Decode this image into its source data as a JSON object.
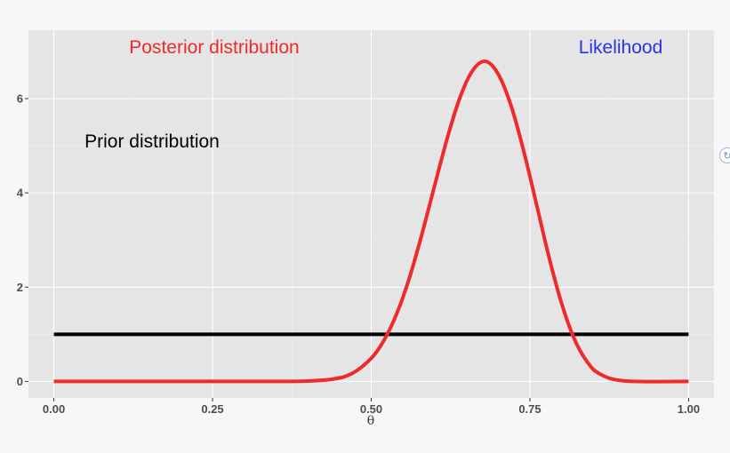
{
  "chart_data": {
    "type": "line",
    "title": "",
    "xlabel": "θ",
    "ylabel": "",
    "xlim": [
      -0.04,
      1.04
    ],
    "ylim": [
      -0.35,
      7.45
    ],
    "x_ticks": [
      0,
      0.25,
      0.5,
      0.75,
      1
    ],
    "x_tick_labels": [
      "0.00",
      "0.25",
      "0.50",
      "0.75",
      "1.00"
    ],
    "y_ticks": [
      0,
      2,
      4,
      6
    ],
    "y_tick_labels": [
      "0",
      "2",
      "4",
      "6"
    ],
    "grid": true,
    "legend": "none",
    "series": [
      {
        "color": "#000000",
        "x": [
          0,
          1
        ],
        "y": [
          1,
          1
        ]
      },
      {
        "color": "#ee2a2a",
        "x": [
          0,
          0.3,
          0.35,
          0.4,
          0.44,
          0.47,
          0.5,
          0.52,
          0.54,
          0.56,
          0.58,
          0.6,
          0.62,
          0.64,
          0.66,
          0.68,
          0.7,
          0.72,
          0.74,
          0.76,
          0.78,
          0.8,
          0.82,
          0.84,
          0.86,
          0.9,
          1
        ],
        "y": [
          0,
          0,
          0.001,
          0.009,
          0.05,
          0.17,
          0.49,
          0.87,
          1.43,
          2.19,
          3.13,
          4.16,
          5.17,
          6.03,
          6.6,
          6.79,
          6.52,
          5.86,
          4.9,
          3.78,
          2.64,
          1.65,
          0.9,
          0.42,
          0.16,
          0.01,
          0
        ]
      }
    ],
    "annotations": [
      {
        "text": "Posterior distribution",
        "color": "#ee2a2a"
      },
      {
        "text": "Likelihood",
        "color": "#2b32e6"
      },
      {
        "text": "Prior distribution",
        "color": "#000000"
      }
    ]
  },
  "icons": {
    "edge_badge": "scroll-edge-icon"
  }
}
